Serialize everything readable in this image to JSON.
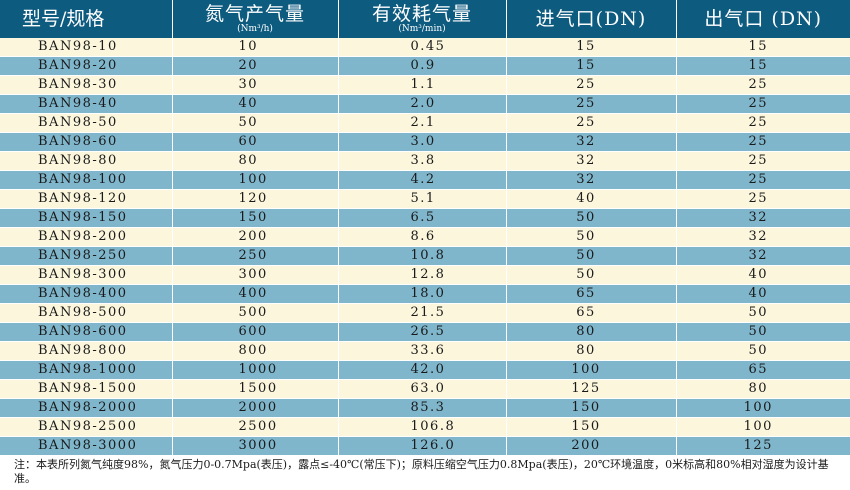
{
  "header": {
    "model": "型号/规格",
    "nitrogen_output": "氮气产气量",
    "nitrogen_output_unit": "(Nm³/h)",
    "air_consumption": "有效耗气量",
    "air_consumption_unit": "(Nm³/min)",
    "inlet": "进气口(DN)",
    "outlet": "出气口 (DN)"
  },
  "rows": [
    {
      "model": "BAN98-10",
      "output": "10",
      "consumption": "0.45",
      "inlet": "15",
      "outlet": "15"
    },
    {
      "model": "BAN98-20",
      "output": "20",
      "consumption": "0.9",
      "inlet": "15",
      "outlet": "15"
    },
    {
      "model": "BAN98-30",
      "output": "30",
      "consumption": "1.1",
      "inlet": "25",
      "outlet": "25"
    },
    {
      "model": "BAN98-40",
      "output": "40",
      "consumption": "2.0",
      "inlet": "25",
      "outlet": "25"
    },
    {
      "model": "BAN98-50",
      "output": "50",
      "consumption": "2.1",
      "inlet": "25",
      "outlet": "25"
    },
    {
      "model": "BAN98-60",
      "output": "60",
      "consumption": "3.0",
      "inlet": "32",
      "outlet": "25"
    },
    {
      "model": "BAN98-80",
      "output": "80",
      "consumption": "3.8",
      "inlet": "32",
      "outlet": "25"
    },
    {
      "model": "BAN98-100",
      "output": "100",
      "consumption": "4.2",
      "inlet": "32",
      "outlet": "25"
    },
    {
      "model": "BAN98-120",
      "output": "120",
      "consumption": "5.1",
      "inlet": "40",
      "outlet": "25"
    },
    {
      "model": "BAN98-150",
      "output": "150",
      "consumption": "6.5",
      "inlet": "50",
      "outlet": "32"
    },
    {
      "model": "BAN98-200",
      "output": "200",
      "consumption": "8.6",
      "inlet": "50",
      "outlet": "32"
    },
    {
      "model": "BAN98-250",
      "output": "250",
      "consumption": "10.8",
      "inlet": "50",
      "outlet": "32"
    },
    {
      "model": "BAN98-300",
      "output": "300",
      "consumption": "12.8",
      "inlet": "50",
      "outlet": "40"
    },
    {
      "model": "BAN98-400",
      "output": "400",
      "consumption": "18.0",
      "inlet": "65",
      "outlet": "40"
    },
    {
      "model": "BAN98-500",
      "output": "500",
      "consumption": "21.5",
      "inlet": "65",
      "outlet": "50"
    },
    {
      "model": "BAN98-600",
      "output": "600",
      "consumption": "26.5",
      "inlet": "80",
      "outlet": "50"
    },
    {
      "model": "BAN98-800",
      "output": "800",
      "consumption": "33.6",
      "inlet": "80",
      "outlet": "50"
    },
    {
      "model": "BAN98-1000",
      "output": "1000",
      "consumption": "42.0",
      "inlet": "100",
      "outlet": "65"
    },
    {
      "model": "BAN98-1500",
      "output": "1500",
      "consumption": "63.0",
      "inlet": "125",
      "outlet": "80"
    },
    {
      "model": "BAN98-2000",
      "output": "2000",
      "consumption": "85.3",
      "inlet": "150",
      "outlet": "100"
    },
    {
      "model": "BAN98-2500",
      "output": "2500",
      "consumption": "106.8",
      "inlet": "150",
      "outlet": "100"
    },
    {
      "model": "BAN98-3000",
      "output": "3000",
      "consumption": "126.0",
      "inlet": "200",
      "outlet": "125"
    }
  ],
  "note": "注：本表所列氮气纯度98%，氮气压力0-0.7Mpa(表压)，露点≤-40℃(常压下)；原料压缩空气压力0.8Mpa(表压)，20℃环境温度，0米标高和80%相对湿度为设计基准。",
  "colors": {
    "header_bg": "#0e5b80",
    "row_light": "#fbf6dc",
    "row_blue": "#7fb6cc"
  }
}
